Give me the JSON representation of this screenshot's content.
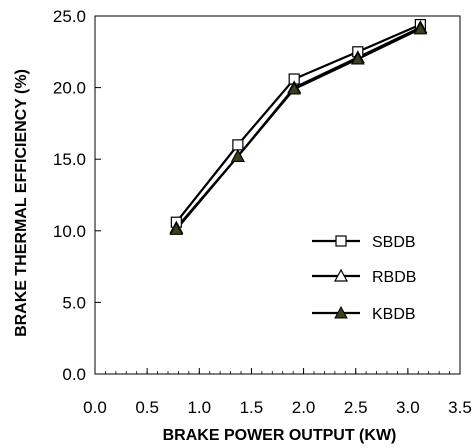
{
  "chart_data": {
    "type": "line",
    "xlabel": "BRAKE POWER OUTPUT (KW)",
    "ylabel": "BRAKE THERMAL EFFICIENCY (%)",
    "xlim": [
      0.0,
      3.5
    ],
    "ylim": [
      0.0,
      25.0
    ],
    "x_ticks": [
      "0.0",
      "0.5",
      "1.0",
      "1.5",
      "2.0",
      "2.5",
      "3.0",
      "3.5"
    ],
    "y_ticks": [
      "0.0",
      "5.0",
      "10.0",
      "15.0",
      "20.0",
      "25.0"
    ],
    "grid": false,
    "legend_position": "right",
    "x": [
      0.78,
      1.37,
      1.91,
      2.52,
      3.12
    ],
    "series": [
      {
        "name": "SBDB",
        "marker": "open-square",
        "values": [
          10.6,
          16.0,
          20.6,
          22.5,
          24.4
        ]
      },
      {
        "name": "RBDB",
        "marker": "open-triangle",
        "values": [
          10.2,
          15.2,
          20.0,
          22.1,
          24.2
        ]
      },
      {
        "name": "KBDB",
        "marker": "filled-triangle",
        "values": [
          10.1,
          15.2,
          19.9,
          22.0,
          24.1
        ]
      }
    ],
    "colors": {
      "line": "#000000",
      "filled_marker": "#3d3d1f"
    }
  }
}
